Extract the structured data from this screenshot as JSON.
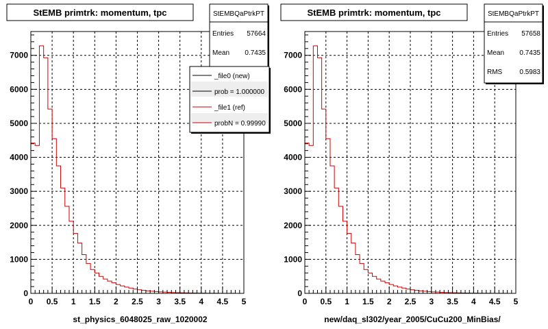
{
  "colors": {
    "background": "#ffffff",
    "frame": "#000000",
    "grid": "#000000",
    "series": "#cc0000",
    "legend_new": "#000000",
    "legend_ref": "#cc0000"
  },
  "chart_data": [
    {
      "type": "histogram",
      "title": "StEMB primtrk: momentum, tpc",
      "xlabel": "st_physics_6048025_raw_1020002",
      "ylabel": "",
      "xlim": [
        0,
        5
      ],
      "ylim": [
        0,
        7700
      ],
      "grid": true,
      "bin_width": 0.1,
      "xticks": [
        "0",
        "0.5",
        "1",
        "1.5",
        "2",
        "2.5",
        "3",
        "3.5",
        "4",
        "4.5",
        "5"
      ],
      "yticks": [
        "0",
        "1000",
        "2000",
        "3000",
        "4000",
        "5000",
        "6000",
        "7000"
      ],
      "stats": {
        "name": "StEMBQaPtrkPT",
        "rows": [
          {
            "label": "Entries",
            "value": "57664"
          },
          {
            "label": "Mean",
            "value": "0.7435"
          }
        ]
      },
      "legend": {
        "position": "top-right",
        "entries": [
          "_file0 (new)",
          "prob = 1.000000",
          "_file1 (ref)",
          "probN = 0.99990"
        ]
      },
      "series": [
        {
          "values": [
            4420,
            4350,
            7280,
            6930,
            5420,
            4550,
            3750,
            3100,
            2560,
            2120,
            1760,
            1480,
            1140,
            880,
            700,
            600,
            500,
            420,
            360,
            310,
            260,
            220,
            185,
            155,
            125,
            105,
            88,
            74,
            62,
            52,
            44,
            37,
            31,
            26,
            22,
            18,
            15,
            12,
            10,
            8,
            7,
            6,
            5,
            4,
            3,
            3,
            2,
            2,
            1,
            1
          ]
        }
      ]
    },
    {
      "type": "histogram",
      "title": "StEMB primtrk: momentum, tpc",
      "xlabel": "new/daq_sl302/year_2005/CuCu200_MinBias/",
      "ylabel": "",
      "xlim": [
        0,
        5
      ],
      "ylim": [
        0,
        7700
      ],
      "grid": true,
      "bin_width": 0.1,
      "xticks": [
        "0",
        "0.5",
        "1",
        "1.5",
        "2",
        "2.5",
        "3",
        "3.5",
        "4",
        "4.5",
        "5"
      ],
      "yticks": [
        "0",
        "1000",
        "2000",
        "3000",
        "4000",
        "5000",
        "6000",
        "7000"
      ],
      "stats": {
        "name": "StEMBQaPtrkPT",
        "rows": [
          {
            "label": "Entries",
            "value": "57658"
          },
          {
            "label": "Mean",
            "value": "0.7435"
          },
          {
            "label": "RMS",
            "value": "0.5983"
          }
        ]
      },
      "series": [
        {
          "values": [
            4420,
            4350,
            7280,
            6930,
            5420,
            4550,
            3750,
            3100,
            2560,
            2120,
            1760,
            1480,
            1140,
            880,
            700,
            600,
            500,
            420,
            360,
            310,
            260,
            220,
            185,
            155,
            125,
            105,
            88,
            74,
            62,
            52,
            44,
            37,
            31,
            26,
            22,
            18,
            15,
            12,
            10,
            8,
            7,
            6,
            5,
            4,
            3,
            3,
            2,
            2,
            1,
            1
          ]
        }
      ]
    }
  ]
}
